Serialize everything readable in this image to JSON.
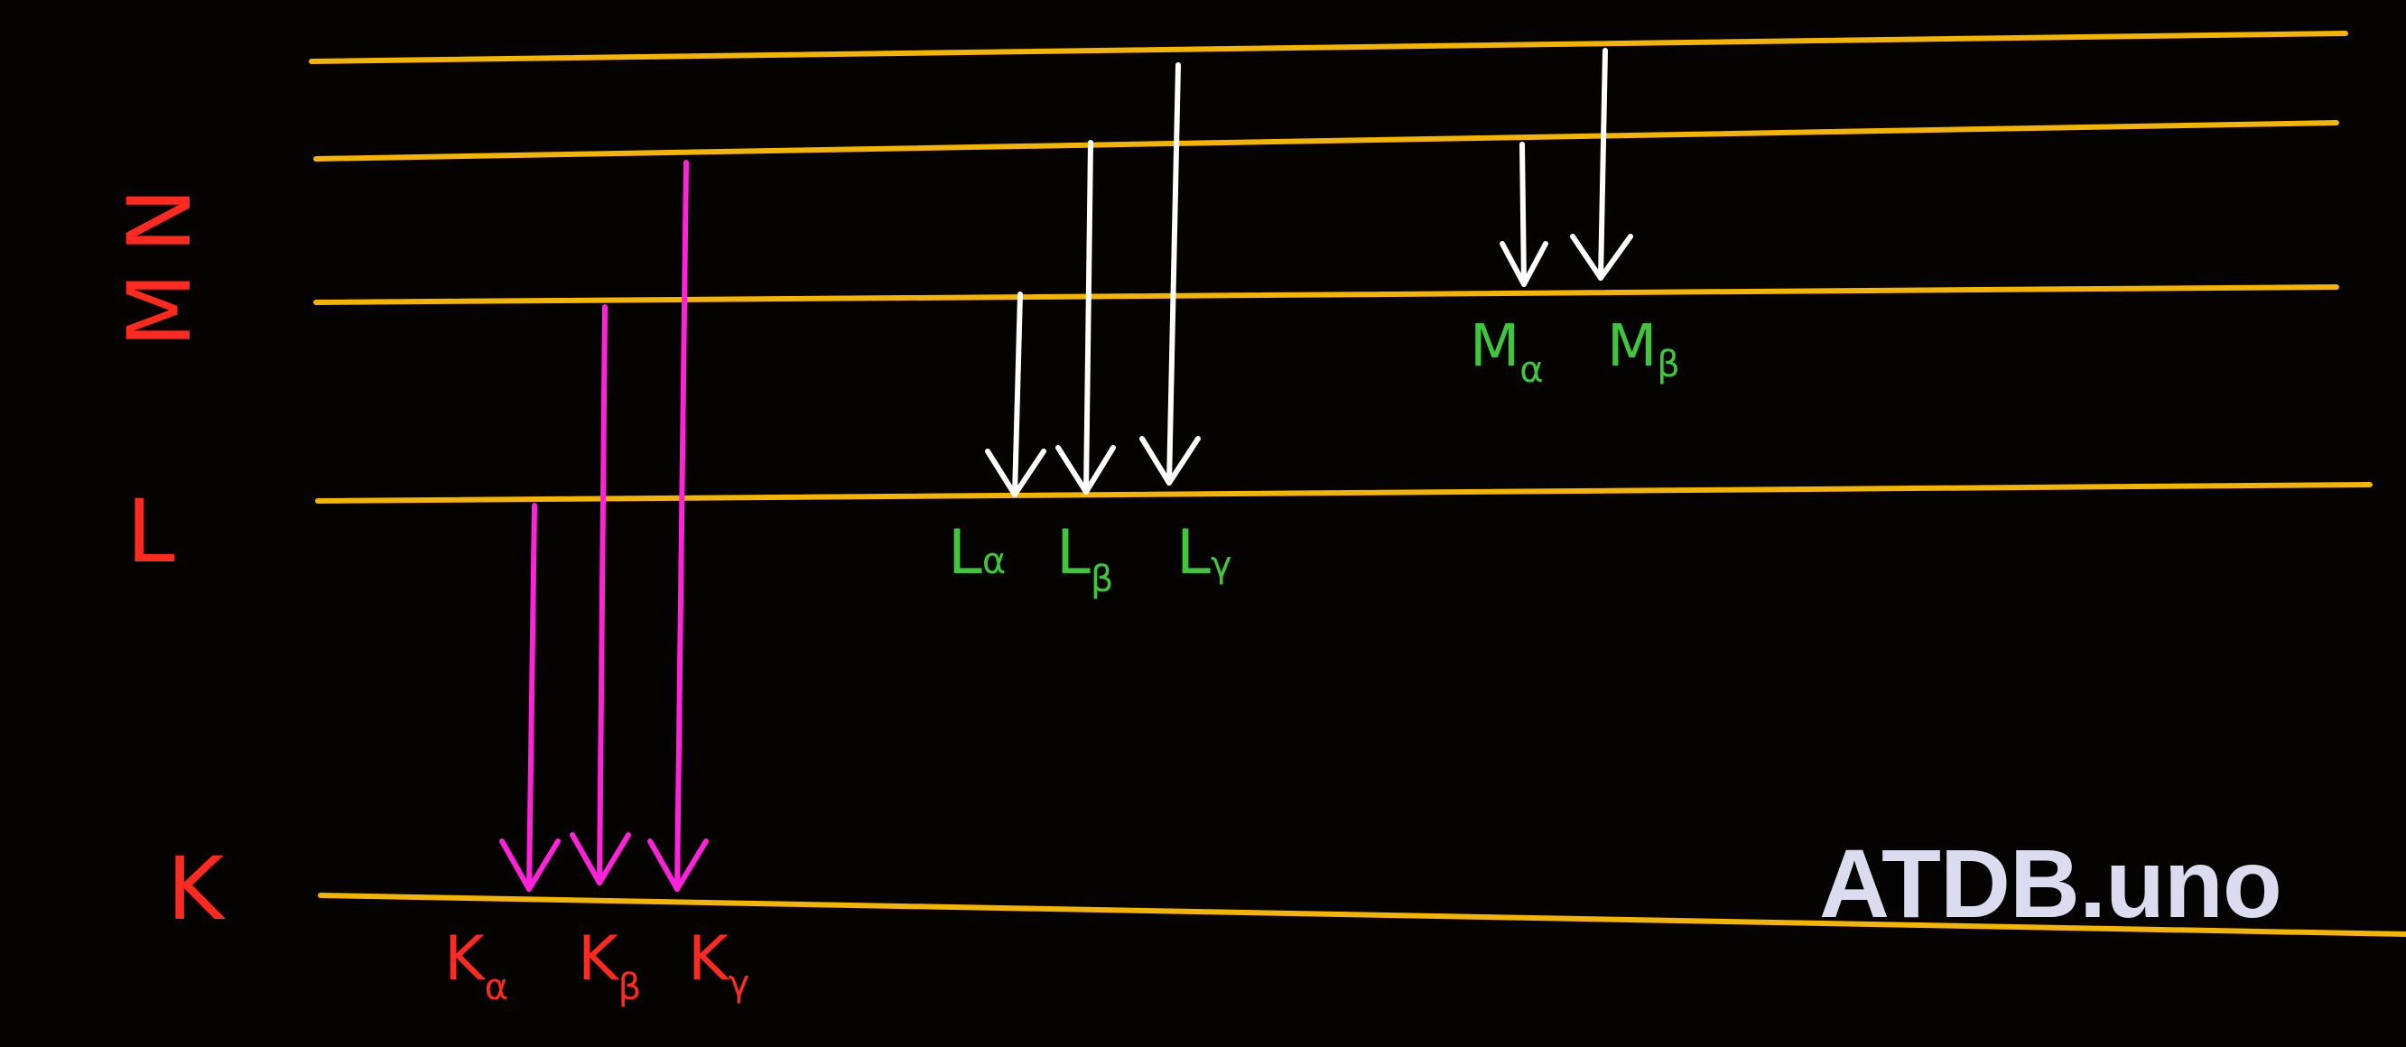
{
  "colors": {
    "background": "#050202",
    "level_line": "#f4b400",
    "k_arrow": "#ff22d8",
    "lm_arrow": "#ffffff",
    "shell_label": "#ff2a1f",
    "green_label": "#3fc63a"
  },
  "shells": [
    {
      "label": "K"
    },
    {
      "label": "L"
    },
    {
      "label": "M"
    },
    {
      "label": "N"
    }
  ],
  "transitions": {
    "k_series": [
      {
        "label": "K",
        "sub": "α"
      },
      {
        "label": "K",
        "sub": "β"
      },
      {
        "label": "K",
        "sub": "γ"
      }
    ],
    "l_series": [
      {
        "label": "L",
        "sub": "α"
      },
      {
        "label": "L",
        "sub": "β"
      },
      {
        "label": "L",
        "sub": "γ"
      }
    ],
    "m_series": [
      {
        "label": "M",
        "sub": "α"
      },
      {
        "label": "M",
        "sub": "β"
      }
    ]
  },
  "watermark": "ATDB.uno"
}
